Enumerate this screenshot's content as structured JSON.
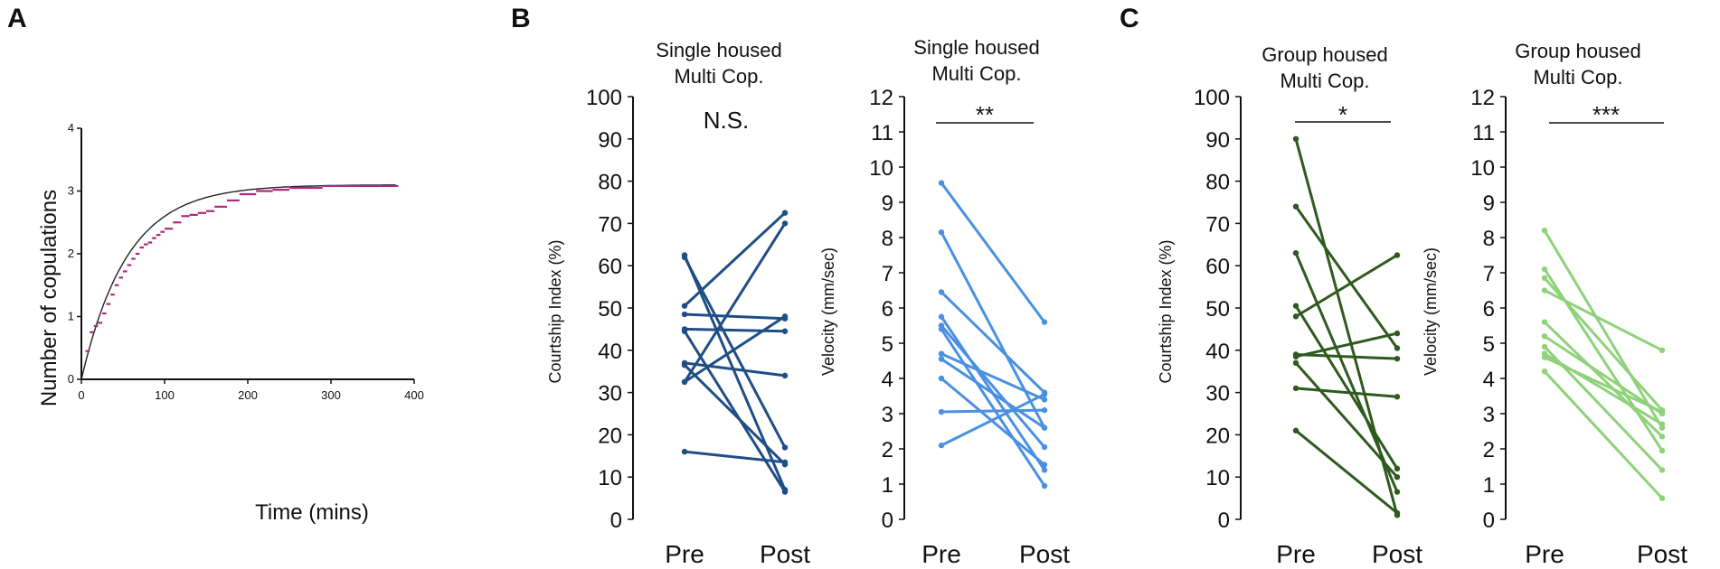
{
  "panel_letters": {
    "a": "A",
    "b": "B",
    "c": "C"
  },
  "colors": {
    "b1": "#1f4e85",
    "b2": "#4a90e2",
    "c1": "#2f5a1e",
    "c2": "#8fd27a",
    "fit": "#222222",
    "step": "#b0297a"
  },
  "chart_data": [
    {
      "id": "A",
      "type": "line",
      "title": "",
      "xlabel": "Time (mins)",
      "ylabel": "Number of copulations",
      "xlim": [
        0,
        400
      ],
      "ylim": [
        0,
        4
      ],
      "x_ticks": [
        "0",
        "100",
        "200",
        "300",
        "400"
      ],
      "y_ticks": [
        "0",
        "1",
        "2",
        "3",
        "4"
      ],
      "series": [
        {
          "name": "observed (step)",
          "x": [
            5,
            10,
            15,
            20,
            25,
            30,
            35,
            40,
            45,
            50,
            55,
            60,
            65,
            70,
            75,
            80,
            85,
            90,
            95,
            100,
            110,
            120,
            130,
            140,
            150,
            160,
            175,
            190,
            210,
            230,
            250,
            290,
            330,
            380
          ],
          "y": [
            0.45,
            0.75,
            0.85,
            0.9,
            1.05,
            1.2,
            1.35,
            1.5,
            1.62,
            1.72,
            1.82,
            1.92,
            2.0,
            2.1,
            2.15,
            2.18,
            2.25,
            2.3,
            2.35,
            2.4,
            2.5,
            2.6,
            2.62,
            2.65,
            2.68,
            2.75,
            2.85,
            2.95,
            3.0,
            3.02,
            3.05,
            3.08,
            3.08,
            3.08
          ]
        },
        {
          "name": "fit",
          "model": "3.1*(1-exp(-x/55))",
          "asymptote": 3.1,
          "tau": 55
        }
      ]
    },
    {
      "id": "B-left",
      "type": "line",
      "title": "Single housed\nMulti Cop.",
      "title_lines": [
        "Single housed",
        "Multi Cop."
      ],
      "ylabel": "Courtship Index (%)",
      "categories": [
        "Pre",
        "Post"
      ],
      "ylim": [
        0,
        100
      ],
      "y_ticks": [
        "0",
        "10",
        "20",
        "30",
        "40",
        "50",
        "60",
        "70",
        "80",
        "90",
        "100"
      ],
      "annotation": "N.S.",
      "pairs": [
        [
          62.5,
          7
        ],
        [
          62,
          17
        ],
        [
          50.5,
          72.5
        ],
        [
          48.5,
          47.5
        ],
        [
          45,
          44.5
        ],
        [
          44.5,
          6.5
        ],
        [
          37,
          34
        ],
        [
          36.5,
          13
        ],
        [
          32.5,
          48
        ],
        [
          32.5,
          70
        ],
        [
          16,
          13.5
        ]
      ]
    },
    {
      "id": "B-right",
      "type": "line",
      "title": "Single housed\nMulti Cop.",
      "title_lines": [
        "Single housed",
        "Multi Cop."
      ],
      "ylabel": "Velocity (mm/sec)",
      "categories": [
        "Pre",
        "Post"
      ],
      "ylim": [
        0,
        12
      ],
      "y_ticks": [
        "0",
        "1",
        "2",
        "3",
        "4",
        "5",
        "6",
        "7",
        "8",
        "9",
        "10",
        "11",
        "12"
      ],
      "annotation": "**",
      "pairs": [
        [
          9.55,
          5.6
        ],
        [
          8.15,
          2.6
        ],
        [
          6.45,
          3.6
        ],
        [
          5.75,
          1.4
        ],
        [
          5.5,
          2.05
        ],
        [
          5.4,
          0.95
        ],
        [
          4.7,
          3.4
        ],
        [
          4.55,
          2.6
        ],
        [
          4.0,
          1.55
        ],
        [
          3.05,
          3.1
        ],
        [
          2.1,
          3.55
        ]
      ]
    },
    {
      "id": "C-left",
      "type": "line",
      "title": "Group housed\nMulti Cop.",
      "title_lines": [
        "Group housed",
        "Multi Cop."
      ],
      "ylabel": "Courtship Index (%)",
      "categories": [
        "Pre",
        "Post"
      ],
      "ylim": [
        0,
        100
      ],
      "y_ticks": [
        "0",
        "10",
        "20",
        "30",
        "40",
        "50",
        "60",
        "70",
        "80",
        "90",
        "100"
      ],
      "annotation": "*",
      "pairs": [
        [
          90,
          1
        ],
        [
          74,
          40.5
        ],
        [
          63,
          6.5
        ],
        [
          50.5,
          12
        ],
        [
          48,
          62.5
        ],
        [
          39,
          38
        ],
        [
          38.5,
          44
        ],
        [
          37,
          10
        ],
        [
          31,
          29
        ],
        [
          21,
          1.5
        ]
      ]
    },
    {
      "id": "C-right",
      "type": "line",
      "title": "Group housed\nMulti Cop.",
      "title_lines": [
        "Group housed",
        "Multi Cop."
      ],
      "ylabel": "Velocity (mm/sec)",
      "categories": [
        "Pre",
        "Post"
      ],
      "ylim": [
        0,
        12
      ],
      "y_ticks": [
        "0",
        "1",
        "2",
        "3",
        "4",
        "5",
        "6",
        "7",
        "8",
        "9",
        "10",
        "11",
        "12"
      ],
      "annotation": "***",
      "pairs": [
        [
          8.2,
          2.6
        ],
        [
          7.1,
          1.95
        ],
        [
          6.85,
          3.1
        ],
        [
          6.5,
          4.8
        ],
        [
          5.6,
          2.35
        ],
        [
          5.2,
          3.0
        ],
        [
          4.9,
          1.4
        ],
        [
          4.7,
          2.7
        ],
        [
          4.6,
          3.05
        ],
        [
          4.2,
          0.6
        ]
      ]
    }
  ]
}
